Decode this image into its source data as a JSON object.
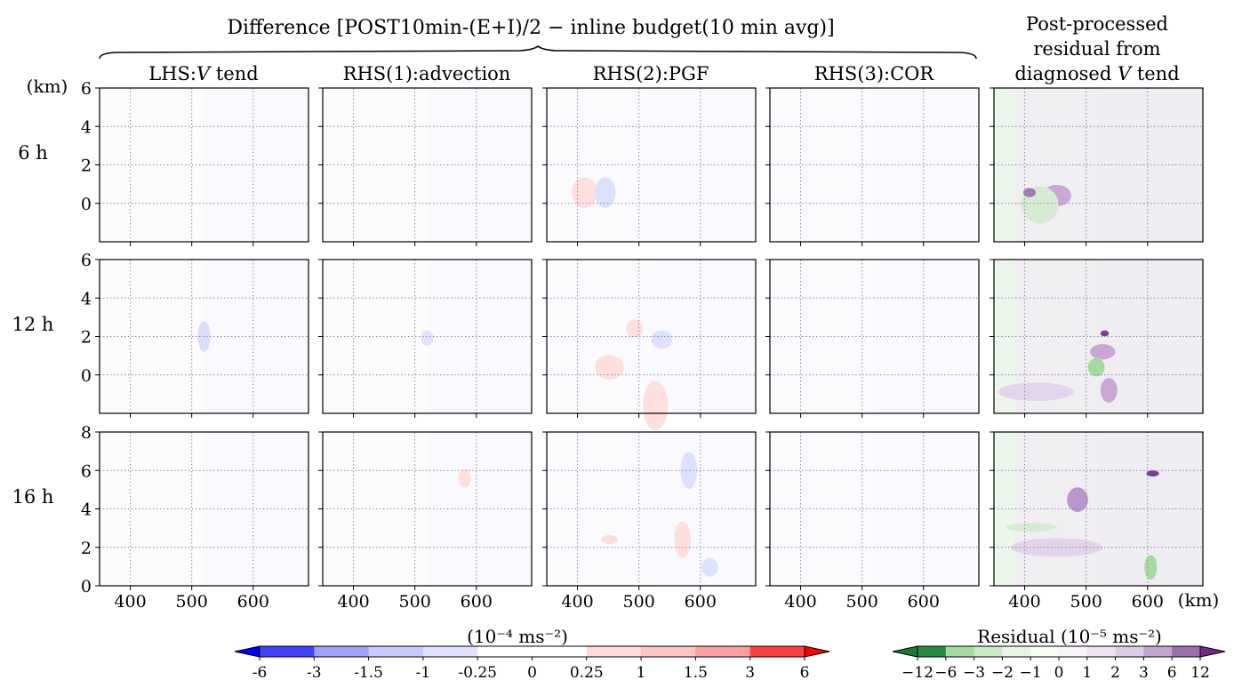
{
  "figure": {
    "group_title": "Difference [POST10min-(E+I)/2 − inline budget(10 min avg)]",
    "right_title_lines": [
      "Post-processed",
      "residual from",
      "diagnosed V tend"
    ],
    "y_unit": "(km)",
    "x_unit": "(km)"
  },
  "chart_data": {
    "type": "heatmap",
    "column_titles": [
      "LHS:V tend",
      "RHS(1):advection",
      "RHS(2):PGF",
      "RHS(3):COR",
      "Post-processed residual from diagnosed V tend"
    ],
    "row_labels": [
      "6 h",
      "12 h",
      "16 h"
    ],
    "x_ticks": [
      400,
      500,
      600
    ],
    "x_range": [
      350,
      690
    ],
    "y_ranges": [
      [
        -2,
        6
      ],
      [
        -2,
        6
      ],
      [
        0,
        8
      ]
    ],
    "y_ticks": [
      [
        0,
        2,
        4,
        6
      ],
      [
        0,
        2,
        4,
        6
      ],
      [
        0,
        2,
        4,
        6,
        8
      ]
    ],
    "grid": true,
    "colorbars": [
      {
        "label": "(10⁻⁴ ms⁻²)",
        "tick_labels": [
          "-6",
          "-3",
          "-1.5",
          "-1",
          "-0.25",
          "0",
          "0.25",
          "1",
          "1.5",
          "3",
          "6"
        ],
        "colors": [
          "#4040ff",
          "#a0a0ff",
          "#c8c8ff",
          "#e1e1ff",
          "#ffffff",
          "#ffffff",
          "#ffdada",
          "#ffc4c4",
          "#ff9e9e",
          "#ff4040"
        ],
        "extend_left": "#0000ff",
        "extend_right": "#ff0000"
      },
      {
        "label": "Residual (10⁻⁵ ms⁻²)",
        "tick_labels": [
          "−12",
          "−6",
          "−3",
          "−2",
          "−1",
          "0",
          "1",
          "2",
          "3",
          "6",
          "12"
        ],
        "colors": [
          "#2a8a44",
          "#a6dba0",
          "#c8eac3",
          "#e8f5e4",
          "#f6fbf4",
          "#f7f3f8",
          "#ece3f0",
          "#dccbe4",
          "#c2a5cf",
          "#9a6eaf"
        ],
        "extend_left": "#1b7837",
        "extend_right": "#762a83"
      }
    ]
  }
}
